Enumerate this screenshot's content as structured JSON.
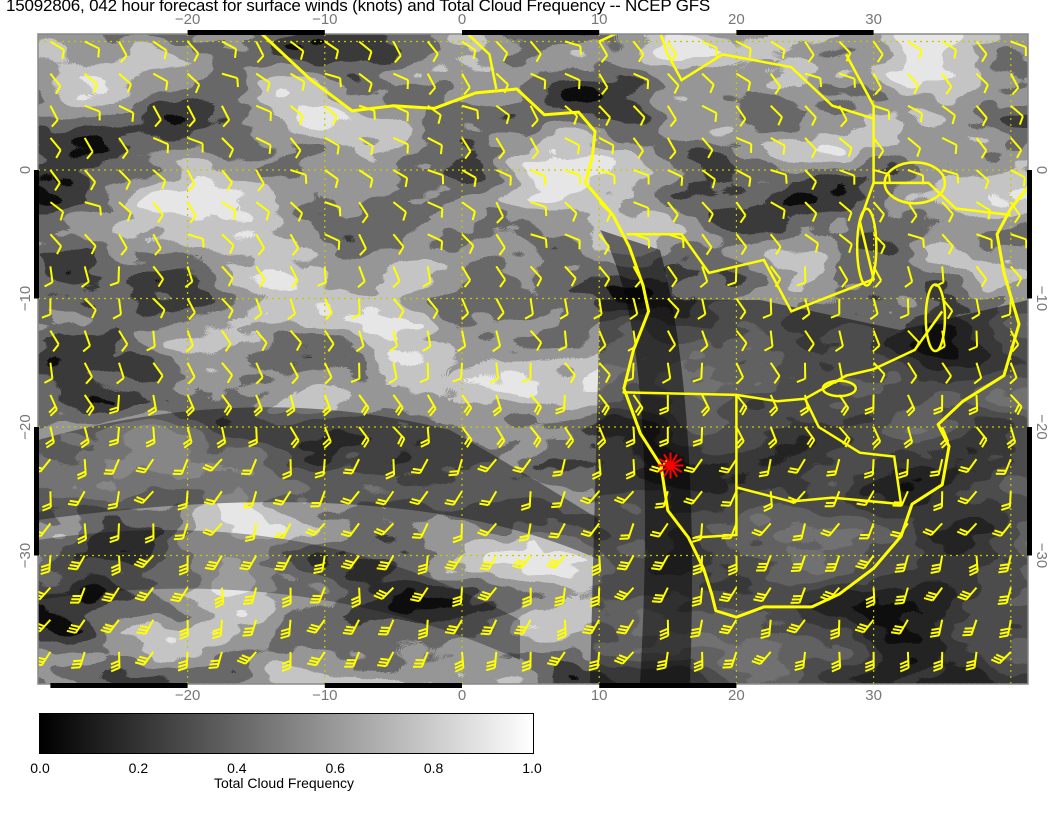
{
  "title": "15092806, 042 hour forecast for surface winds (knots) and Total Cloud Frequency -- NCEP GFS",
  "map": {
    "lon_ticks": [
      "−20",
      "−10",
      "0",
      "10",
      "20",
      "30"
    ],
    "lat_ticks": [
      "0",
      "−10",
      "−20",
      "−30"
    ],
    "lon_range": [
      -31,
      41
    ],
    "lat_range": [
      11,
      -40
    ],
    "coastline_color": "#ffff00",
    "wind_barb_color": "#ffff00",
    "grid_color": "#c8c800",
    "marker": {
      "icon": "red-asterisk-marker",
      "lon": 15.2,
      "lat": -23,
      "color": "#ff0000"
    }
  },
  "colorbar": {
    "ticks": [
      "0.0",
      "0.2",
      "0.4",
      "0.6",
      "0.8",
      "1.0"
    ],
    "title": "Total Cloud Frequency",
    "range": [
      0,
      1
    ],
    "colors": [
      "#000000",
      "#ffffff"
    ]
  }
}
